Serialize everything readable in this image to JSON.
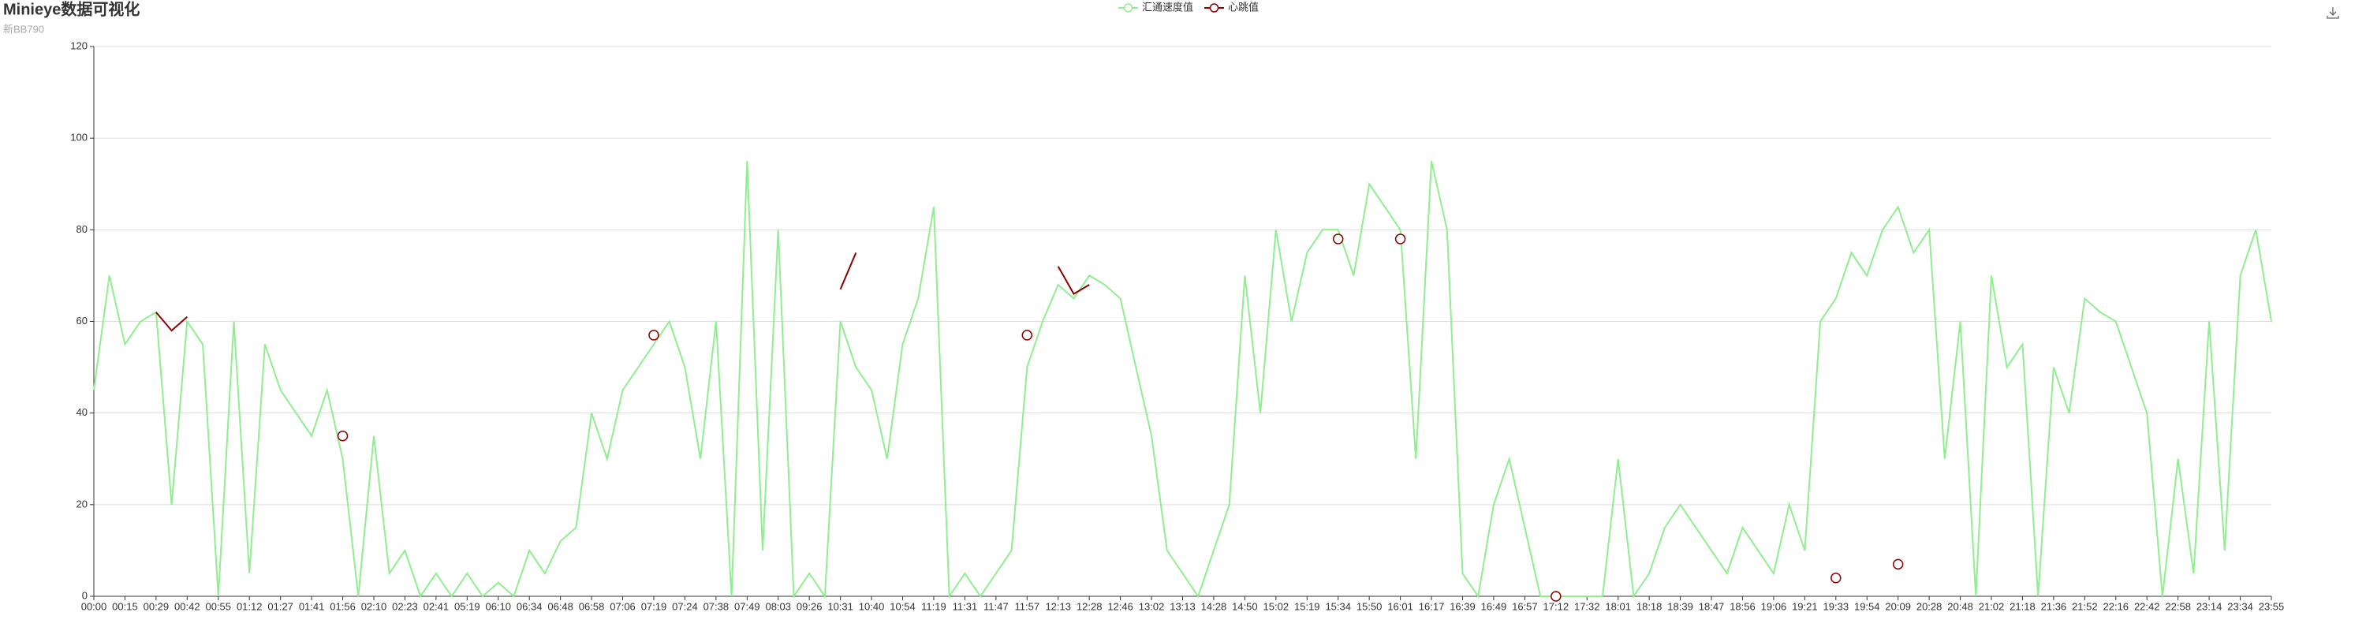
{
  "chart_data": {
    "type": "line",
    "title": "Minieye数据可视化",
    "subtitle": "新BB790",
    "categories": [
      "00:00",
      null,
      "00:15",
      null,
      "00:29",
      null,
      "00:42",
      null,
      "00:55",
      null,
      "01:12",
      null,
      "01:27",
      null,
      "01:41",
      null,
      "01:56",
      null,
      "02:10",
      null,
      "02:23",
      null,
      "02:41",
      null,
      "05:19",
      null,
      "06:10",
      null,
      "06:34",
      null,
      "06:48",
      null,
      "06:58",
      null,
      "07:06",
      null,
      "07:19",
      null,
      "07:24",
      null,
      "07:38",
      null,
      "07:49",
      null,
      "08:03",
      null,
      "09:26",
      null,
      "10:31",
      null,
      "10:40",
      null,
      "10:54",
      null,
      "11:19",
      null,
      "11:31",
      null,
      "11:47",
      null,
      "11:57",
      null,
      "12:13",
      null,
      "12:28",
      null,
      "12:46",
      null,
      "13:02",
      null,
      "13:13",
      null,
      "14:28",
      null,
      "14:50",
      null,
      "15:02",
      null,
      "15:19",
      null,
      "15:34",
      null,
      "15:50",
      null,
      "16:01",
      null,
      "16:17",
      null,
      "16:39",
      null,
      "16:49",
      null,
      "16:57",
      null,
      "17:12",
      null,
      "17:32",
      null,
      "18:01",
      null,
      "18:18",
      null,
      "18:39",
      null,
      "18:47",
      null,
      "18:56",
      null,
      "19:06",
      null,
      "19:21",
      null,
      "19:33",
      null,
      "19:54",
      null,
      "20:09",
      null,
      "20:28",
      null,
      "20:48",
      null,
      "21:02",
      null,
      "21:18",
      null,
      "21:36",
      null,
      "21:52",
      null,
      "22:16",
      null,
      "22:42",
      null,
      "22:58",
      null,
      "23:14",
      null,
      "23:34",
      null,
      "23:55"
    ],
    "series": [
      {
        "name": "汇通速度值",
        "color": "#90ee90",
        "values": [
          45,
          70,
          55,
          60,
          62,
          20,
          60,
          55,
          0,
          60,
          5,
          55,
          45,
          40,
          35,
          45,
          30,
          0,
          35,
          5,
          10,
          0,
          5,
          0,
          5,
          0,
          3,
          0,
          10,
          5,
          12,
          15,
          40,
          30,
          45,
          50,
          55,
          60,
          50,
          30,
          60,
          0,
          95,
          10,
          80,
          0,
          5,
          0,
          60,
          50,
          45,
          30,
          55,
          65,
          85,
          0,
          5,
          0,
          5,
          10,
          50,
          60,
          68,
          65,
          70,
          68,
          65,
          50,
          35,
          10,
          5,
          0,
          10,
          20,
          70,
          40,
          80,
          60,
          75,
          80,
          80,
          70,
          90,
          85,
          80,
          30,
          95,
          80,
          5,
          0,
          20,
          30,
          15,
          0,
          0,
          0,
          0,
          0,
          30,
          0,
          5,
          15,
          20,
          15,
          10,
          5,
          15,
          10,
          5,
          20,
          10,
          60,
          65,
          75,
          70,
          80,
          85,
          75,
          80,
          30,
          60,
          0,
          70,
          50,
          55,
          0,
          50,
          40,
          65,
          62,
          60,
          50,
          40,
          0,
          30,
          5,
          60,
          10,
          70,
          80,
          60
        ]
      },
      {
        "name": "心跳值",
        "color": "#8b0000",
        "values": [
          null,
          null,
          null,
          null,
          62,
          58,
          61,
          null,
          null,
          null,
          null,
          null,
          null,
          null,
          null,
          null,
          35,
          null,
          null,
          null,
          null,
          null,
          null,
          null,
          null,
          null,
          null,
          null,
          null,
          null,
          null,
          null,
          null,
          null,
          null,
          null,
          57,
          null,
          null,
          null,
          null,
          null,
          null,
          null,
          null,
          null,
          null,
          null,
          67,
          75,
          null,
          null,
          null,
          null,
          null,
          null,
          null,
          null,
          null,
          null,
          57,
          null,
          72,
          66,
          68,
          null,
          null,
          null,
          null,
          null,
          null,
          null,
          null,
          null,
          null,
          null,
          null,
          null,
          null,
          null,
          78,
          null,
          null,
          null,
          78,
          null,
          null,
          null,
          null,
          null,
          null,
          null,
          null,
          null,
          0,
          null,
          null,
          null,
          null,
          null,
          null,
          null,
          null,
          null,
          null,
          null,
          null,
          null,
          null,
          null,
          null,
          null,
          4,
          null,
          null,
          null,
          7,
          null,
          null,
          null,
          null,
          null,
          null,
          null,
          null,
          null,
          null,
          null,
          null,
          null,
          null,
          null,
          null,
          null,
          null,
          null,
          null,
          null,
          null,
          null,
          null
        ]
      }
    ],
    "ylim": [
      0,
      120
    ],
    "yticks": [
      0,
      20,
      40,
      60,
      80,
      100,
      120
    ],
    "grid": true,
    "legend": "top"
  }
}
